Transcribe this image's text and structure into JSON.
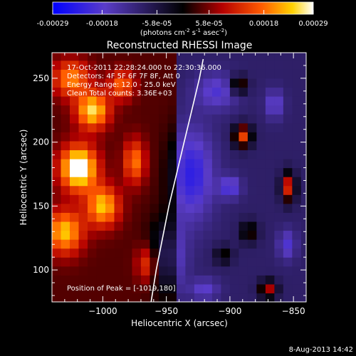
{
  "colorbar": {
    "tick_labels": [
      "-0.00029",
      "-0.00018",
      "-5.8e-05",
      "5.8e-05",
      "0.00018",
      "0.00029"
    ],
    "tick_values": [
      -0.00029,
      -0.00018,
      -5.8e-05,
      5.8e-05,
      0.00018,
      0.00029
    ],
    "range": [
      -0.00029,
      0.00029
    ],
    "units_main": "(photons cm",
    "units_exp1": "-2",
    "units_mid": " s",
    "units_exp2": "-1",
    "units_tail": " asec",
    "units_exp3": "-2",
    "units_close": ")"
  },
  "chart_data": {
    "type": "heatmap",
    "title": "Reconstructed RHESSI Image",
    "xlabel": "Heliocentric X (arcsec)",
    "ylabel": "Heliocentric Y (arcsec)",
    "xlim": [
      -1040,
      -840
    ],
    "ylim": [
      75,
      270
    ],
    "x_ticks": [
      -1000,
      -950,
      -900,
      -850
    ],
    "x_tick_labels": [
      "−1000",
      "−950",
      "−900",
      "−850"
    ],
    "y_ticks": [
      100,
      150,
      200,
      250
    ],
    "y_tick_labels": [
      "100",
      "150",
      "200",
      "250"
    ],
    "colormap": [
      "#0000ff",
      "#5a3cc8",
      "#000000",
      "#b40000",
      "#ff5a00",
      "#ffd200",
      "#ffffff"
    ],
    "sources": [
      {
        "x": -1019,
        "y": 180,
        "amp": 0.00029,
        "sx": 10,
        "sy": 12
      },
      {
        "x": -1008,
        "y": 225,
        "amp": 0.00022,
        "sx": 9,
        "sy": 10
      },
      {
        "x": -1000,
        "y": 150,
        "amp": 0.0002,
        "sx": 9,
        "sy": 11
      },
      {
        "x": -1030,
        "y": 130,
        "amp": 0.0002,
        "sx": 10,
        "sy": 12
      },
      {
        "x": -1025,
        "y": 250,
        "amp": 0.00016,
        "sx": 10,
        "sy": 10
      },
      {
        "x": -985,
        "y": 245,
        "amp": 0.00014,
        "sx": 7,
        "sy": 8
      },
      {
        "x": -975,
        "y": 185,
        "amp": 0.00015,
        "sx": 6,
        "sy": 12
      },
      {
        "x": -965,
        "y": 105,
        "amp": 0.00012,
        "sx": 6,
        "sy": 10
      },
      {
        "x": -890,
        "y": 205,
        "amp": 0.00024,
        "sx": 5,
        "sy": 6
      },
      {
        "x": -893,
        "y": 245,
        "amp": 0.00016,
        "sx": 5,
        "sy": 5
      },
      {
        "x": -854,
        "y": 165,
        "amp": 0.00022,
        "sx": 4,
        "sy": 8
      },
      {
        "x": -885,
        "y": 130,
        "amp": 0.00012,
        "sx": 5,
        "sy": 6
      },
      {
        "x": -870,
        "y": 85,
        "amp": 0.00018,
        "sx": 5,
        "sy": 5
      },
      {
        "x": -905,
        "y": 112,
        "amp": 0.0001,
        "sx": 5,
        "sy": 5
      },
      {
        "x": -950,
        "y": 110,
        "amp": -0.00012,
        "sx": 10,
        "sy": 20
      },
      {
        "x": -930,
        "y": 175,
        "amp": -0.00014,
        "sx": 12,
        "sy": 25
      },
      {
        "x": -910,
        "y": 240,
        "amp": -0.0001,
        "sx": 12,
        "sy": 10
      },
      {
        "x": -900,
        "y": 165,
        "amp": -0.00012,
        "sx": 6,
        "sy": 6
      },
      {
        "x": -855,
        "y": 120,
        "amp": -0.0001,
        "sx": 5,
        "sy": 8
      },
      {
        "x": -865,
        "y": 230,
        "amp": -0.0001,
        "sx": 5,
        "sy": 8
      },
      {
        "x": -920,
        "y": 85,
        "amp": -9e-05,
        "sx": 8,
        "sy": 6
      }
    ],
    "limb_curve": [
      [
        -962,
        75
      ],
      [
        -958,
        100
      ],
      [
        -953,
        125
      ],
      [
        -948,
        150
      ],
      [
        -942,
        175
      ],
      [
        -936,
        200
      ],
      [
        -930,
        225
      ],
      [
        -924,
        250
      ],
      [
        -921,
        265
      ]
    ],
    "annotations": [
      "17-Oct-2011 22:28:24.000 to 22:30:36.000",
      "Detectors: 4F 5F 6F 7F 8F, Att 0",
      "Energy Range: 12.0 - 25.0 keV",
      "Clean     Total counts: 3.36E+03"
    ],
    "peak_label": "Position of Peak = [-1019,180]"
  },
  "footer": {
    "timestamp": "8-Aug-2013 14:42"
  }
}
